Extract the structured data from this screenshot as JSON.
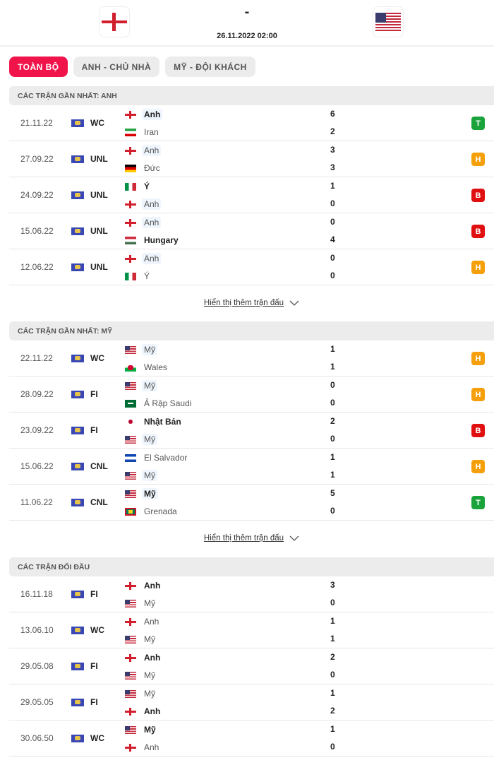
{
  "header": {
    "home_flag": "eng",
    "away_flag": "usa",
    "score": "-",
    "datetime": "26.11.2022 02:00"
  },
  "tabs": [
    {
      "label": "TOÀN BỘ",
      "active": true
    },
    {
      "label": "ANH - CHỦ NHÀ",
      "active": false
    },
    {
      "label": "MỸ - ĐỘI KHÁCH",
      "active": false
    }
  ],
  "result_colors": {
    "T": "#1aa33a",
    "H": "#f5a00b",
    "B": "#e01010"
  },
  "accent": "#f0144a",
  "sections": [
    {
      "title": "CÁC TRẬN GẦN NHẤT: ANH",
      "more_label": "Hiển thị thêm trận đấu",
      "matches": [
        {
          "date": "21.11.22",
          "comp": "WC",
          "home": {
            "name": "Anh",
            "flag": "eng",
            "bold": true,
            "hl": true
          },
          "away": {
            "name": "Iran",
            "flag": "irn",
            "bold": false,
            "hl": false
          },
          "hg": "6",
          "ag": "2",
          "result": "T"
        },
        {
          "date": "27.09.22",
          "comp": "UNL",
          "home": {
            "name": "Anh",
            "flag": "eng",
            "bold": false,
            "hl": true
          },
          "away": {
            "name": "Đức",
            "flag": "ger",
            "bold": false,
            "hl": false
          },
          "hg": "3",
          "ag": "3",
          "result": "H"
        },
        {
          "date": "24.09.22",
          "comp": "UNL",
          "home": {
            "name": "Ý",
            "flag": "ita",
            "bold": true,
            "hl": false
          },
          "away": {
            "name": "Anh",
            "flag": "eng",
            "bold": false,
            "hl": true
          },
          "hg": "1",
          "ag": "0",
          "result": "B"
        },
        {
          "date": "15.06.22",
          "comp": "UNL",
          "home": {
            "name": "Anh",
            "flag": "eng",
            "bold": false,
            "hl": true
          },
          "away": {
            "name": "Hungary",
            "flag": "hun",
            "bold": true,
            "hl": false
          },
          "hg": "0",
          "ag": "4",
          "result": "B"
        },
        {
          "date": "12.06.22",
          "comp": "UNL",
          "home": {
            "name": "Anh",
            "flag": "eng",
            "bold": false,
            "hl": true
          },
          "away": {
            "name": "Ý",
            "flag": "ita",
            "bold": false,
            "hl": false
          },
          "hg": "0",
          "ag": "0",
          "result": "H"
        }
      ]
    },
    {
      "title": "CÁC TRẬN GẦN NHẤT: MỸ",
      "more_label": "Hiển thị thêm trận đấu",
      "matches": [
        {
          "date": "22.11.22",
          "comp": "WC",
          "home": {
            "name": "Mỹ",
            "flag": "usa",
            "bold": false,
            "hl": true
          },
          "away": {
            "name": "Wales",
            "flag": "wal",
            "bold": false,
            "hl": false
          },
          "hg": "1",
          "ag": "1",
          "result": "H"
        },
        {
          "date": "28.09.22",
          "comp": "FI",
          "home": {
            "name": "Mỹ",
            "flag": "usa",
            "bold": false,
            "hl": true
          },
          "away": {
            "name": "Ả Rập Saudi",
            "flag": "ksa",
            "bold": false,
            "hl": false
          },
          "hg": "0",
          "ag": "0",
          "result": "H"
        },
        {
          "date": "23.09.22",
          "comp": "FI",
          "home": {
            "name": "Nhật Bản",
            "flag": "jpn",
            "bold": true,
            "hl": false
          },
          "away": {
            "name": "Mỹ",
            "flag": "usa",
            "bold": false,
            "hl": true
          },
          "hg": "2",
          "ag": "0",
          "result": "B"
        },
        {
          "date": "15.06.22",
          "comp": "CNL",
          "home": {
            "name": "El Salvador",
            "flag": "slv",
            "bold": false,
            "hl": false
          },
          "away": {
            "name": "Mỹ",
            "flag": "usa",
            "bold": false,
            "hl": true
          },
          "hg": "1",
          "ag": "1",
          "result": "H"
        },
        {
          "date": "11.06.22",
          "comp": "CNL",
          "home": {
            "name": "Mỹ",
            "flag": "usa",
            "bold": true,
            "hl": true
          },
          "away": {
            "name": "Grenada",
            "flag": "grn",
            "bold": false,
            "hl": false
          },
          "hg": "5",
          "ag": "0",
          "result": "T"
        }
      ]
    },
    {
      "title": "CÁC TRẬN ĐỐI ĐẦU",
      "matches": [
        {
          "date": "16.11.18",
          "comp": "FI",
          "home": {
            "name": "Anh",
            "flag": "eng",
            "bold": true,
            "hl": false
          },
          "away": {
            "name": "Mỹ",
            "flag": "usa",
            "bold": false,
            "hl": false
          },
          "hg": "3",
          "ag": "0"
        },
        {
          "date": "13.06.10",
          "comp": "WC",
          "home": {
            "name": "Anh",
            "flag": "eng",
            "bold": false,
            "hl": false
          },
          "away": {
            "name": "Mỹ",
            "flag": "usa",
            "bold": false,
            "hl": false
          },
          "hg": "1",
          "ag": "1"
        },
        {
          "date": "29.05.08",
          "comp": "FI",
          "home": {
            "name": "Anh",
            "flag": "eng",
            "bold": true,
            "hl": false
          },
          "away": {
            "name": "Mỹ",
            "flag": "usa",
            "bold": false,
            "hl": false
          },
          "hg": "2",
          "ag": "0"
        },
        {
          "date": "29.05.05",
          "comp": "FI",
          "home": {
            "name": "Mỹ",
            "flag": "usa",
            "bold": false,
            "hl": false
          },
          "away": {
            "name": "Anh",
            "flag": "eng",
            "bold": true,
            "hl": false
          },
          "hg": "1",
          "ag": "2"
        },
        {
          "date": "30.06.50",
          "comp": "WC",
          "home": {
            "name": "Mỹ",
            "flag": "usa",
            "bold": true,
            "hl": false
          },
          "away": {
            "name": "Anh",
            "flag": "eng",
            "bold": false,
            "hl": false
          },
          "hg": "1",
          "ag": "0"
        }
      ]
    }
  ]
}
